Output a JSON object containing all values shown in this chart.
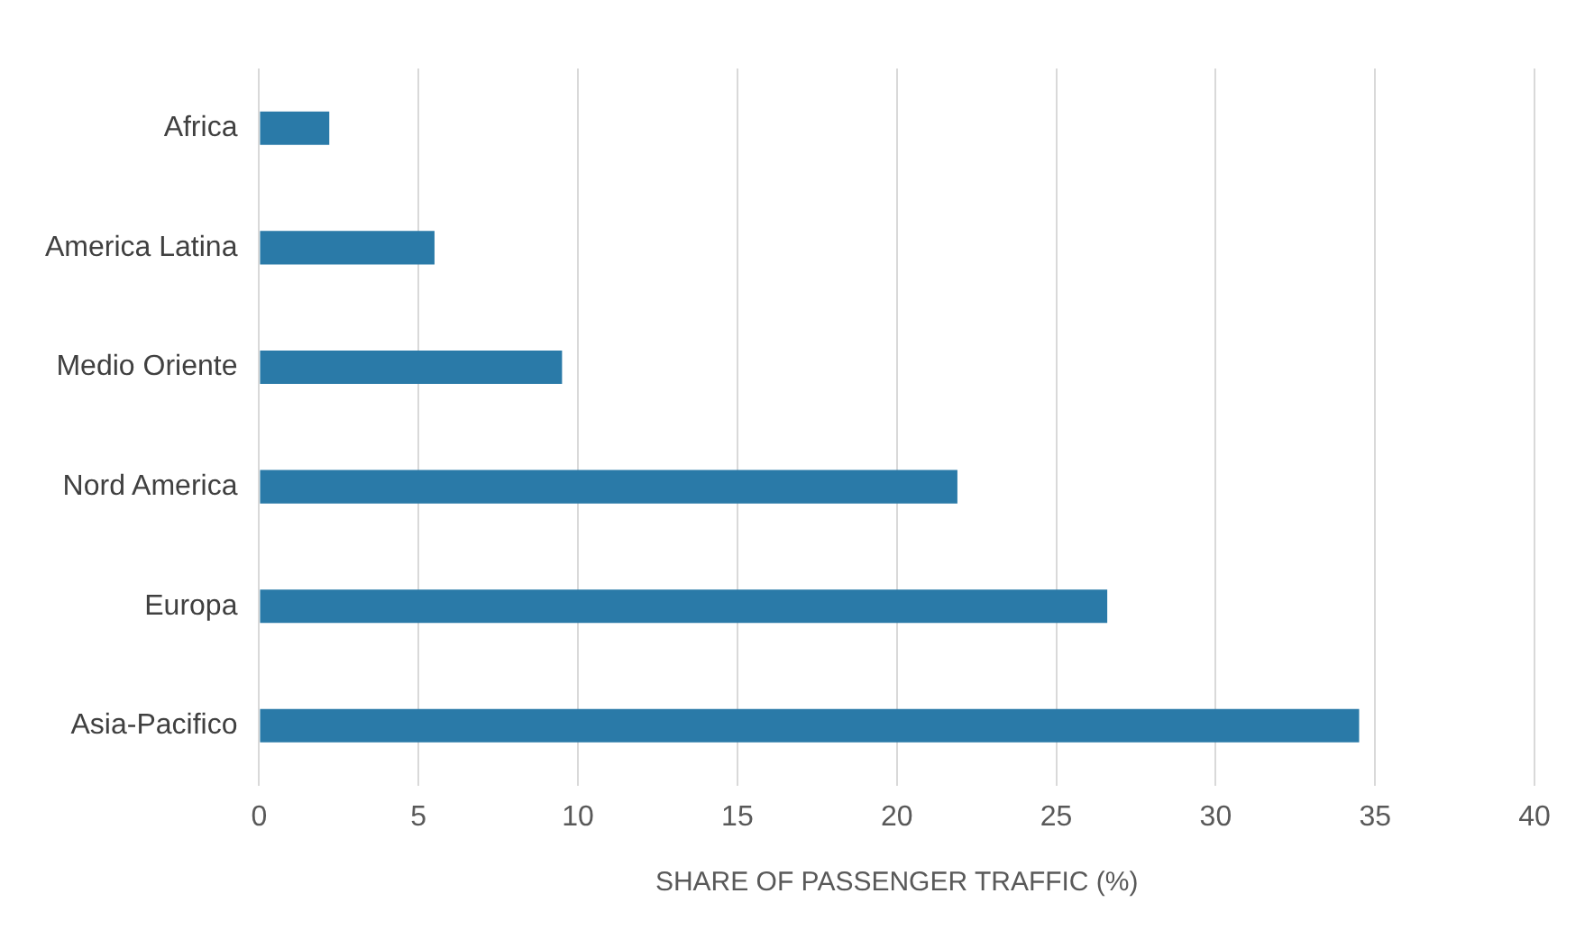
{
  "chart_data": {
    "type": "bar",
    "orientation": "horizontal",
    "xlabel": "SHARE OF PASSENGER TRAFFIC (%)",
    "categories": [
      "Africa",
      "America Latina",
      "Medio Oriente",
      "Nord America",
      "Europa",
      "Asia-Pacifico"
    ],
    "values": [
      2.2,
      5.5,
      9.5,
      21.9,
      26.6,
      34.5
    ],
    "color": "#2a7aa8",
    "xlim": [
      0,
      40
    ],
    "xticks": [
      0,
      5,
      10,
      15,
      20,
      25,
      30,
      35,
      40
    ],
    "grid": "x",
    "legend": false
  }
}
